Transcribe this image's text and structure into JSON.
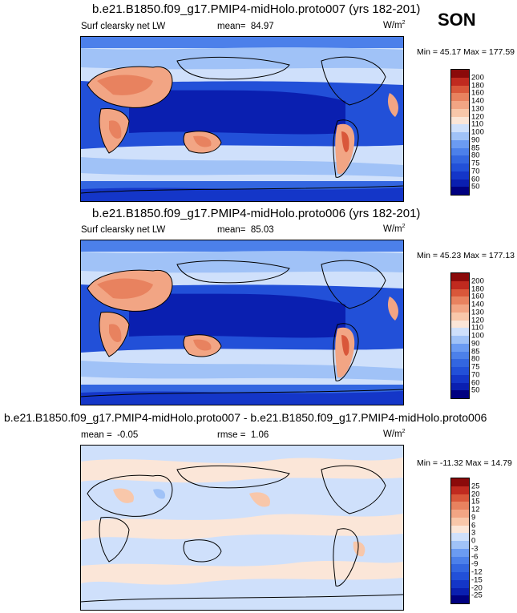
{
  "season": "SON",
  "chart_data": [
    {
      "type": "heatmap",
      "title": "b.e21.B1850.f09_g17.PMIP4-midHolo.proto007 (yrs 182-201)",
      "variable": "Surf clearsky net LW",
      "mean_label": "mean=",
      "mean_value": "84.97",
      "units": "W/m",
      "units_exp": "2",
      "minmax": "Min =  45.17 Max = 177.59",
      "levels": [
        50,
        60,
        70,
        75,
        80,
        85,
        90,
        100,
        110,
        120,
        130,
        140,
        160,
        180,
        200
      ]
    },
    {
      "type": "heatmap",
      "title": "b.e21.B1850.f09_g17.PMIP4-midHolo.proto006 (yrs 182-201)",
      "variable": "Surf clearsky net LW",
      "mean_label": "mean=",
      "mean_value": "85.03",
      "units": "W/m",
      "units_exp": "2",
      "minmax": "Min =  45.23 Max = 177.13",
      "levels": [
        50,
        60,
        70,
        75,
        80,
        85,
        90,
        100,
        110,
        120,
        130,
        140,
        160,
        180,
        200
      ]
    },
    {
      "type": "heatmap",
      "title": "b.e21.B1850.f09_g17.PMIP4-midHolo.proto007 - b.e21.B1850.f09_g17.PMIP4-midHolo.proto006",
      "mean_label": "mean =",
      "mean_value": "-0.05",
      "rmse_label": "rmse =",
      "rmse_value": "1.06",
      "units": "W/m",
      "units_exp": "2",
      "minmax": "Min = -11.32 Max = 14.79",
      "levels": [
        -25,
        -20,
        -15,
        -12,
        -9,
        -6,
        -3,
        0,
        3,
        6,
        9,
        12,
        15,
        20,
        25
      ]
    }
  ],
  "colors": {
    "abs_scale": [
      "#000080",
      "#0a1fb0",
      "#1436c8",
      "#2250d8",
      "#3366e0",
      "#4c80ea",
      "#6b9bf2",
      "#a0c2f7",
      "#cfe0fb",
      "#fbe6d8",
      "#f8c7aa",
      "#f2a584",
      "#e8825f",
      "#d9573a",
      "#c02a1f",
      "#8b0a0a"
    ],
    "diff_scale": [
      "#000080",
      "#0a1fb0",
      "#1436c8",
      "#2250d8",
      "#3366e0",
      "#4c80ea",
      "#6b9bf2",
      "#a0c2f7",
      "#cfe0fb",
      "#fbe6d8",
      "#f8c7aa",
      "#f2a584",
      "#e8825f",
      "#d9573a",
      "#c02a1f",
      "#8b0a0a"
    ]
  }
}
